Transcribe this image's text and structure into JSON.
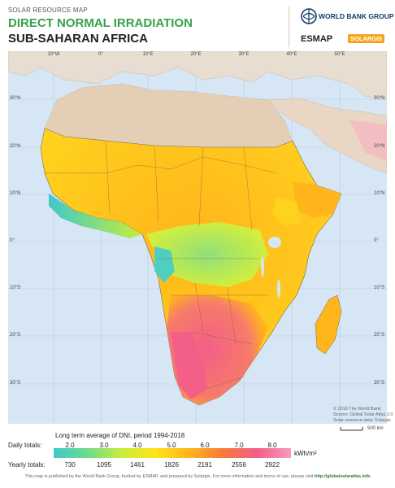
{
  "header": {
    "supertitle": "SOLAR RESOURCE MAP",
    "title": "DIRECT NORMAL IRRADIATION",
    "subtitle": "SUB-SAHARAN AFRICA",
    "wb_logo": "WORLD BANK GROUP",
    "esmap_logo": "ESMAP",
    "solargis_logo": "SOLARGIS"
  },
  "map": {
    "lon_labels": [
      "10°W",
      "0°",
      "10°E",
      "20°E",
      "30°E",
      "40°E",
      "50°E"
    ],
    "lat_labels": [
      "30°N",
      "20°N",
      "10°N",
      "0°",
      "10°S",
      "20°S",
      "30°S"
    ],
    "credits": [
      "© 2019 The World Bank",
      "Source: Global Solar Atlas 2.0",
      "Solar resource data: Solargis"
    ],
    "scale_label": "500 km"
  },
  "legend": {
    "title": "Long term average of DNI, period 1994-2018",
    "daily_label": "Daily totals:",
    "yearly_label": "Yearly totals:",
    "daily_values": [
      "2.0",
      "3.0",
      "4.0",
      "5.0",
      "6.0",
      "7.0",
      "8.0"
    ],
    "yearly_values": [
      "730",
      "1095",
      "1461",
      "1826",
      "2191",
      "2556",
      "2922"
    ],
    "unit": "kWh/m²",
    "colors": [
      "#3fc9c9",
      "#6edb8a",
      "#c6ee3c",
      "#ffe31c",
      "#ffb51b",
      "#f77a3a",
      "#f35f86",
      "#f79cbd"
    ]
  },
  "footer": {
    "text": "This map is published by the World Bank Group, funded by ESMAP, and prepared by Solargis. For more information and terms of use, please visit",
    "link": "http://globalsolaratlas.info"
  }
}
